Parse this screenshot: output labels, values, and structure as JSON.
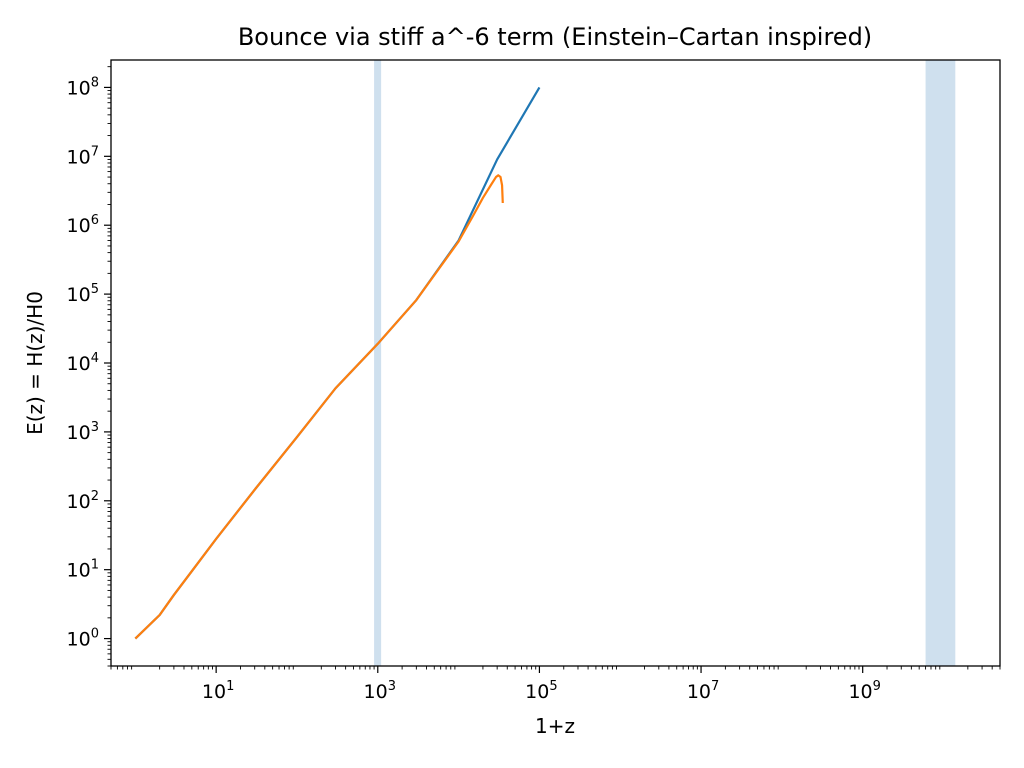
{
  "chart_data": {
    "type": "line",
    "title": "Bounce via stiff a^-6 term (Einstein–Cartan inspired)",
    "xlabel": "1+z",
    "ylabel": "E(z) = H(z)/H0",
    "xscale": "log",
    "yscale": "log",
    "xlim": [
      0.5,
      50000000000
    ],
    "ylim": [
      0.4,
      250000000
    ],
    "grid": false,
    "legend": "none",
    "x_ticks": [
      {
        "value": 10,
        "base": "10",
        "exp": "1"
      },
      {
        "value": 1000,
        "base": "10",
        "exp": "3"
      },
      {
        "value": 100000,
        "base": "10",
        "exp": "5"
      },
      {
        "value": 10000000,
        "base": "10",
        "exp": "7"
      },
      {
        "value": 1000000000,
        "base": "10",
        "exp": "9"
      }
    ],
    "y_ticks": [
      {
        "value": 1,
        "base": "10",
        "exp": "0"
      },
      {
        "value": 10,
        "base": "10",
        "exp": "1"
      },
      {
        "value": 100,
        "base": "10",
        "exp": "2"
      },
      {
        "value": 1000,
        "base": "10",
        "exp": "3"
      },
      {
        "value": 10000,
        "base": "10",
        "exp": "4"
      },
      {
        "value": 100000,
        "base": "10",
        "exp": "5"
      },
      {
        "value": 1000000,
        "base": "10",
        "exp": "6"
      },
      {
        "value": 10000000,
        "base": "10",
        "exp": "7"
      },
      {
        "value": 100000000,
        "base": "10",
        "exp": "8"
      }
    ],
    "shaded_bands": [
      {
        "x0": 900,
        "x1": 1100,
        "color": "#cfe0ee"
      },
      {
        "x0": 6000000000,
        "x1": 14000000000,
        "color": "#cfe0ee"
      }
    ],
    "series": [
      {
        "color": "#1f77b4",
        "points": [
          [
            1,
            1
          ],
          [
            2,
            2.2
          ],
          [
            3,
            4.3
          ],
          [
            5,
            9.5
          ],
          [
            10,
            28
          ],
          [
            30,
            145
          ],
          [
            100,
            840
          ],
          [
            300,
            4300
          ],
          [
            1000,
            19000
          ],
          [
            3000,
            82000
          ],
          [
            10000,
            600000
          ],
          [
            30000,
            9000000
          ],
          [
            100000,
            100000000
          ]
        ]
      },
      {
        "color": "#ff7f0e",
        "points": [
          [
            1,
            1
          ],
          [
            2,
            2.2
          ],
          [
            3,
            4.3
          ],
          [
            5,
            9.5
          ],
          [
            10,
            28
          ],
          [
            30,
            145
          ],
          [
            100,
            840
          ],
          [
            300,
            4300
          ],
          [
            1000,
            19000
          ],
          [
            3000,
            82000
          ],
          [
            10000,
            580000
          ],
          [
            15000,
            1350000
          ],
          [
            20000,
            2500000
          ],
          [
            25000,
            3800000
          ],
          [
            29000,
            5000000
          ],
          [
            31000,
            5300000
          ],
          [
            33000,
            5000000
          ],
          [
            34500,
            3800000
          ],
          [
            35200,
            2100000
          ]
        ]
      }
    ]
  }
}
